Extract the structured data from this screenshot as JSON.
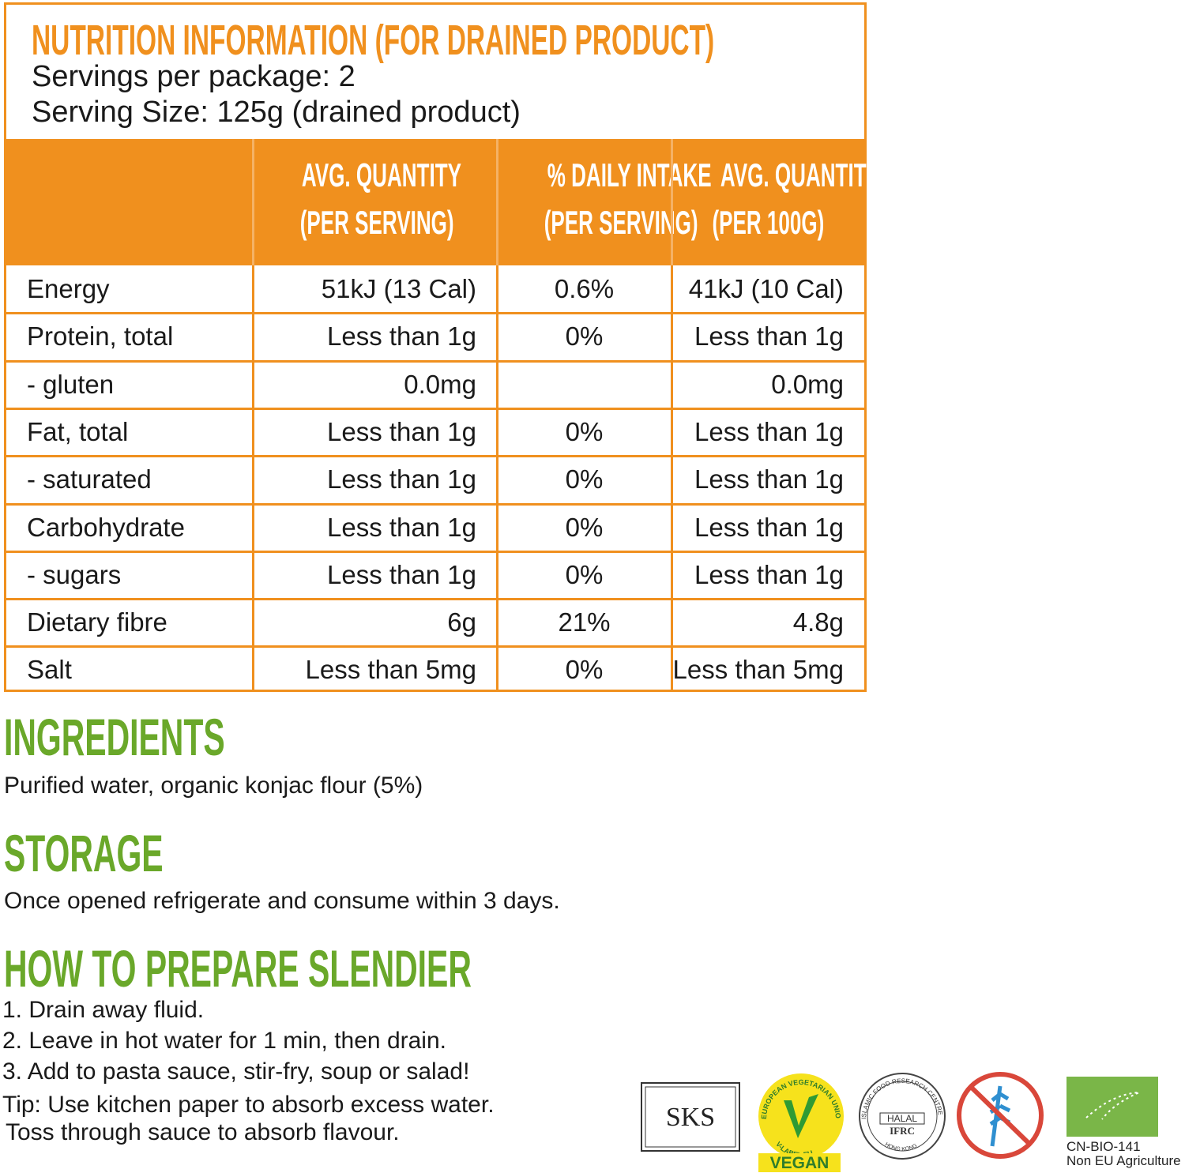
{
  "header": {
    "title": "NUTRITION INFORMATION (FOR DRAINED PRODUCT)",
    "servings": "Servings per package: 2",
    "serving_size": "Serving Size: 125g (drained product)"
  },
  "table": {
    "columns": [
      [
        "AVG. QUANTITY",
        "(PER SERVING)"
      ],
      [
        "% DAILY INTAKE",
        "(PER SERVING)"
      ],
      [
        "AVG. QUANTITY",
        "(PER 100G)"
      ]
    ],
    "rows": [
      [
        "Energy",
        "51kJ (13 Cal)",
        "0.6%",
        "41kJ (10 Cal)"
      ],
      [
        "Protein, total",
        "Less than 1g",
        "0%",
        "Less than 1g"
      ],
      [
        "- gluten",
        "0.0mg",
        null,
        "0.0mg"
      ],
      [
        "Fat, total",
        "Less than 1g",
        "0%",
        "Less than 1g"
      ],
      [
        "- saturated",
        "Less than 1g",
        "0%",
        "Less than 1g"
      ],
      [
        "Carbohydrate",
        "Less than 1g",
        "0%",
        "Less than 1g"
      ],
      [
        "- sugars",
        "Less than 1g",
        "0%",
        "Less than 1g"
      ],
      [
        "Dietary fibre",
        "6g",
        "21%",
        "4.8g"
      ],
      [
        "Salt",
        "Less than 5mg",
        "0%",
        "Less than 5mg"
      ]
    ]
  },
  "ingredients": {
    "heading": "INGREDIENTS",
    "text": "Purified water, organic konjac flour (5%)"
  },
  "storage": {
    "heading": "STORAGE",
    "text": "Once opened refrigerate and consume within 3 days."
  },
  "prepare": {
    "heading": "HOW TO PREPARE SLENDIER",
    "steps": [
      "1. Drain away fluid.",
      "2. Leave in hot water for 1 min, then drain.",
      "3. Add to pasta sauce, stir-fry, soup or salad!",
      "Tip: Use kitchen paper to absorb excess water.",
      "Toss through sauce to absorb flavour."
    ]
  },
  "logos": {
    "sks": "SKS",
    "vegan_ring": "EUROPEAN VEGETARIAN UNION",
    "vegan_site": "V-LABEL.EU",
    "vegan": "VEGAN",
    "halal_ring": "ISLAMIC FOOD RESEARCH CENTRE",
    "halal_city": "HONG KONG",
    "halal": "HALAL",
    "ifrc": "IFRC",
    "bio_code": "CN-BIO-141",
    "bio_text": "Non EU Agriculture"
  }
}
